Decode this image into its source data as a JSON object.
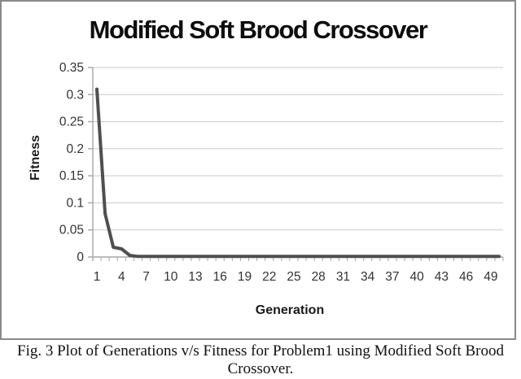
{
  "chart_data": {
    "type": "line",
    "title": "Modified Soft Brood Crossover",
    "xlabel": "Generation",
    "ylabel": "Fitness",
    "x": [
      1,
      2,
      3,
      4,
      5,
      6,
      7,
      8,
      9,
      10,
      11,
      12,
      13,
      14,
      15,
      16,
      17,
      18,
      19,
      20,
      21,
      22,
      23,
      24,
      25,
      26,
      27,
      28,
      29,
      30,
      31,
      32,
      33,
      34,
      35,
      36,
      37,
      38,
      39,
      40,
      41,
      42,
      43,
      44,
      45,
      46,
      47,
      48,
      49,
      50
    ],
    "values": [
      0.31,
      0.08,
      0.018,
      0.015,
      0.003,
      0.001,
      0.001,
      0.001,
      0.001,
      0.001,
      0.001,
      0.001,
      0.001,
      0.001,
      0.001,
      0.001,
      0.001,
      0.001,
      0.001,
      0.001,
      0.001,
      0.001,
      0.001,
      0.001,
      0.001,
      0.001,
      0.001,
      0.001,
      0.001,
      0.001,
      0.001,
      0.001,
      0.001,
      0.001,
      0.001,
      0.001,
      0.001,
      0.001,
      0.001,
      0.001,
      0.001,
      0.001,
      0.001,
      0.001,
      0.001,
      0.001,
      0.001,
      0.001,
      0.001,
      0.001
    ],
    "ylim": [
      0,
      0.35
    ],
    "yticks": [
      0,
      0.05,
      0.1,
      0.15,
      0.2,
      0.25,
      0.3,
      0.35
    ],
    "ytick_labels": [
      "0",
      "0.05",
      "0.1",
      "0.15",
      "0.2",
      "0.25",
      "0.3",
      "0.35"
    ],
    "xtick_values": [
      1,
      4,
      7,
      10,
      13,
      16,
      19,
      22,
      25,
      28,
      31,
      34,
      37,
      40,
      43,
      46,
      49
    ],
    "grid": "horizontal",
    "legend": "none",
    "colors": {
      "line": "#4f4f4f",
      "gridline": "#c9c9c9",
      "axis": "#a6a6a6",
      "tick_label": "#333333",
      "title": "#0d0d0d",
      "border": "#8a8a8a"
    }
  },
  "caption": {
    "line1": "Fig. 3 Plot of Generations v/s Fitness for Problem1 using Modified Soft Brood",
    "line2": "Crossover."
  }
}
